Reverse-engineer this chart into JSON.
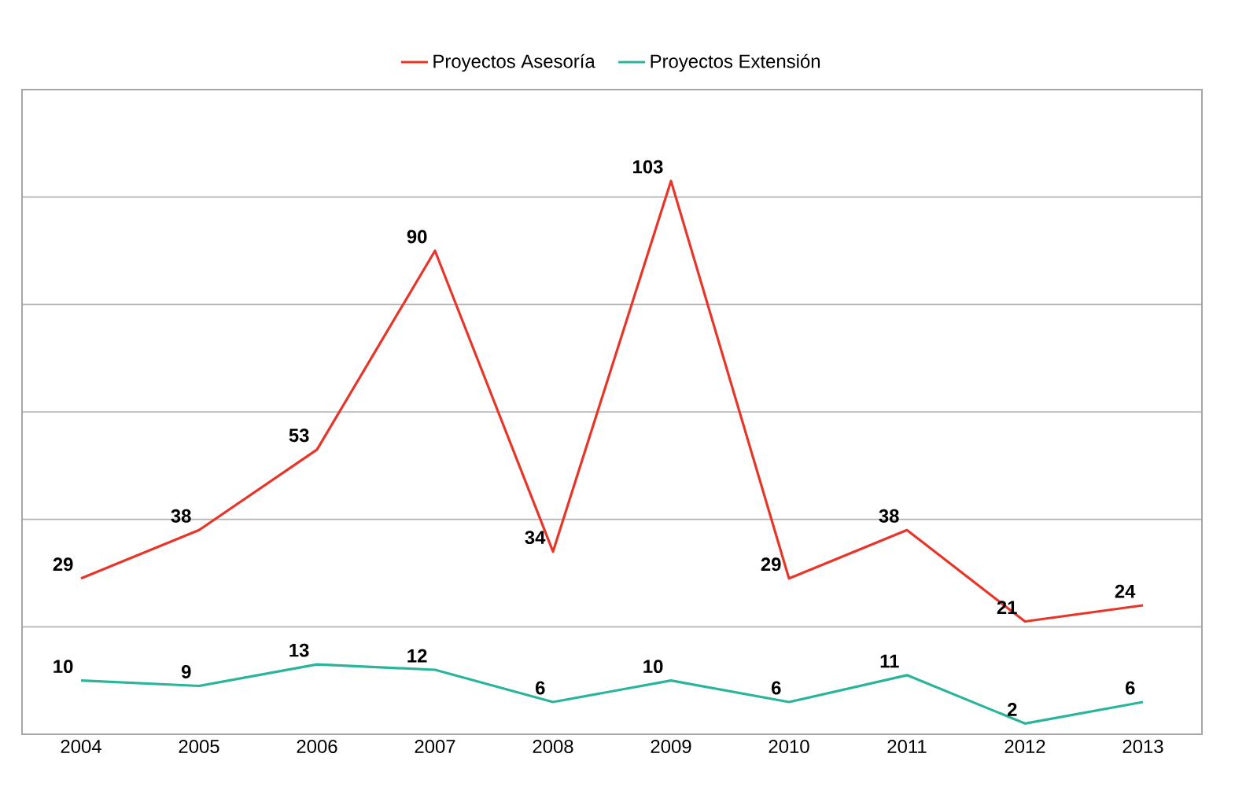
{
  "chart_data": {
    "type": "line",
    "categories": [
      "2004",
      "2005",
      "2006",
      "2007",
      "2008",
      "2009",
      "2010",
      "2011",
      "2012",
      "2013"
    ],
    "series": [
      {
        "name": "Proyectos Asesoría",
        "color": "#e8352a",
        "values": [
          29,
          38,
          53,
          90,
          34,
          103,
          29,
          38,
          21,
          24
        ]
      },
      {
        "name": "Proyectos Extensión",
        "color": "#2ab59a",
        "values": [
          10,
          9,
          13,
          12,
          6,
          10,
          6,
          11,
          2,
          6
        ]
      }
    ],
    "ylim": [
      0,
      120
    ],
    "yticks": [
      {
        "value": 0,
        "label": null
      },
      {
        "value": 20,
        "label": null
      },
      {
        "value": 40,
        "label": null
      },
      {
        "value": 60,
        "label": null
      },
      {
        "value": 80,
        "label": null
      },
      {
        "value": 100,
        "label": null
      },
      {
        "value": 120,
        "label": null
      }
    ],
    "grid": "y",
    "legend": "top",
    "tick_labels": "x",
    "data_labels": true,
    "marker": "none",
    "line_style": "solid"
  }
}
